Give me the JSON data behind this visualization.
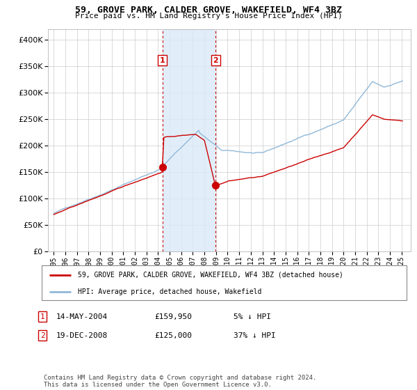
{
  "title": "59, GROVE PARK, CALDER GROVE, WAKEFIELD, WF4 3BZ",
  "subtitle": "Price paid vs. HM Land Registry's House Price Index (HPI)",
  "sale1_date": 2004.37,
  "sale1_price": 159950,
  "sale1_label": "1",
  "sale1_display": "14-MAY-2004",
  "sale1_price_str": "£159,950",
  "sale1_hpi_str": "5% ↓ HPI",
  "sale2_date": 2008.97,
  "sale2_price": 125000,
  "sale2_label": "2",
  "sale2_display": "19-DEC-2008",
  "sale2_price_str": "£125,000",
  "sale2_hpi_str": "37% ↓ HPI",
  "hpi_color": "#90b8d8",
  "sale_color": "#cc0000",
  "shade_color": "#daeaf8",
  "legend1": "59, GROVE PARK, CALDER GROVE, WAKEFIELD, WF4 3BZ (detached house)",
  "legend2": "HPI: Average price, detached house, Wakefield",
  "footer": "Contains HM Land Registry data © Crown copyright and database right 2024.\nThis data is licensed under the Open Government Licence v3.0.",
  "ylim": [
    0,
    420000
  ],
  "xlim": [
    1994.5,
    2025.8
  ],
  "yticks": [
    0,
    50000,
    100000,
    150000,
    200000,
    250000,
    300000,
    350000,
    400000
  ],
  "xticks": [
    1995,
    1996,
    1997,
    1998,
    1999,
    2000,
    2001,
    2002,
    2003,
    2004,
    2005,
    2006,
    2007,
    2008,
    2009,
    2010,
    2011,
    2012,
    2013,
    2014,
    2015,
    2016,
    2017,
    2018,
    2019,
    2020,
    2021,
    2022,
    2023,
    2024,
    2025
  ]
}
